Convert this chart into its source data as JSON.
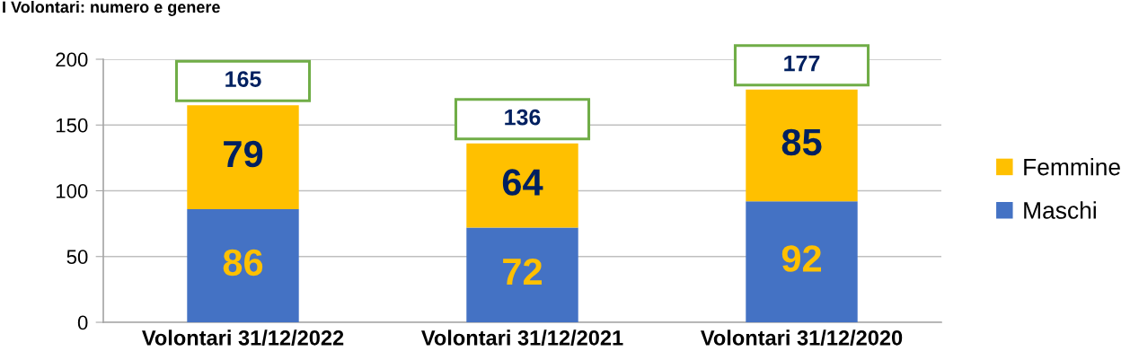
{
  "chart_data": {
    "type": "bar",
    "title": "I Volontari: numero e genere",
    "categories": [
      "Volontari 31/12/2022",
      "Volontari 31/12/2021",
      "Volontari 31/12/2020"
    ],
    "series": [
      {
        "name": "Maschi",
        "color": "#4472c4",
        "values": [
          86,
          72,
          92
        ]
      },
      {
        "name": "Femmine",
        "color": "#ffc000",
        "values": [
          79,
          64,
          85
        ]
      }
    ],
    "stacked": true,
    "data_labels": true,
    "totals": [
      "165",
      "136",
      "177"
    ],
    "ylim": [
      0,
      200
    ],
    "yticks": [
      0,
      50,
      100,
      150,
      200
    ],
    "grid": "y",
    "legend": "right"
  }
}
